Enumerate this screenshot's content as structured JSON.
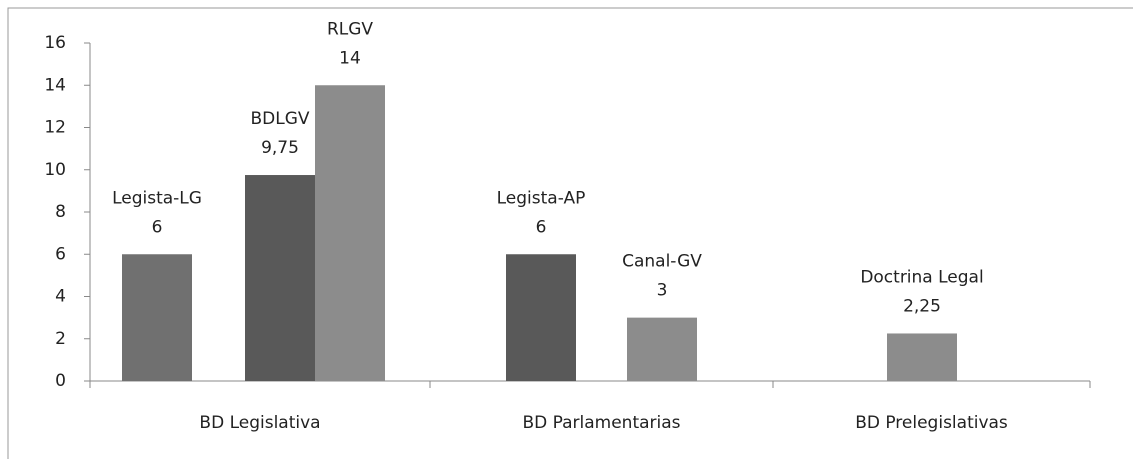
{
  "chart_data": {
    "type": "bar",
    "categories": [
      "BD Legislativa",
      "BD Parlamentarias",
      "BD Prelegislativas"
    ],
    "series": [
      {
        "name": "Legista-LG",
        "color": "#707070",
        "values": [
          6,
          null,
          null
        ]
      },
      {
        "name": "BDLGV",
        "color": "#595959",
        "values": [
          9.75,
          null,
          null
        ],
        "value_labels": [
          "9,75",
          null,
          null
        ]
      },
      {
        "name": "RLGV",
        "color": "#8c8c8c",
        "values": [
          14,
          null,
          null
        ]
      },
      {
        "name": "Legista-AP",
        "color": "#595959",
        "values": [
          null,
          6,
          null
        ]
      },
      {
        "name": "Canal-GV",
        "color": "#8c8c8c",
        "values": [
          null,
          3,
          null
        ]
      },
      {
        "name": "Doctrina Legal",
        "color": "#8c8c8c",
        "values": [
          null,
          null,
          2.25
        ],
        "value_labels": [
          null,
          null,
          "2,25"
        ]
      }
    ],
    "ylim": [
      0,
      16
    ],
    "yticks": [
      0,
      2,
      4,
      6,
      8,
      10,
      12,
      14,
      16
    ],
    "grid": false
  }
}
